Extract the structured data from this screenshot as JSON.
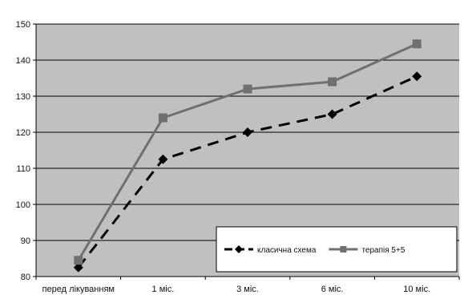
{
  "chart_data": {
    "type": "line",
    "title": "",
    "xlabel": "",
    "ylabel": "",
    "categories": [
      "перед лікуванням",
      "1 міс.",
      "3 міс.",
      "6 міс.",
      "10 міс."
    ],
    "ylim": [
      80,
      150
    ],
    "yticks": [
      80,
      90,
      100,
      110,
      120,
      130,
      140,
      150
    ],
    "grid": true,
    "legend_position": "bottom-right",
    "plot_background": "#c0c0c0",
    "series": [
      {
        "name": "класична схема",
        "values": [
          82.5,
          112.5,
          120,
          125,
          135.5
        ],
        "color": "#000000",
        "line_style": "dashed",
        "marker": "diamond"
      },
      {
        "name": "терапія 5+5",
        "values": [
          84.5,
          124,
          132,
          134,
          144.5
        ],
        "color": "#707070",
        "line_style": "solid",
        "marker": "square"
      }
    ]
  }
}
